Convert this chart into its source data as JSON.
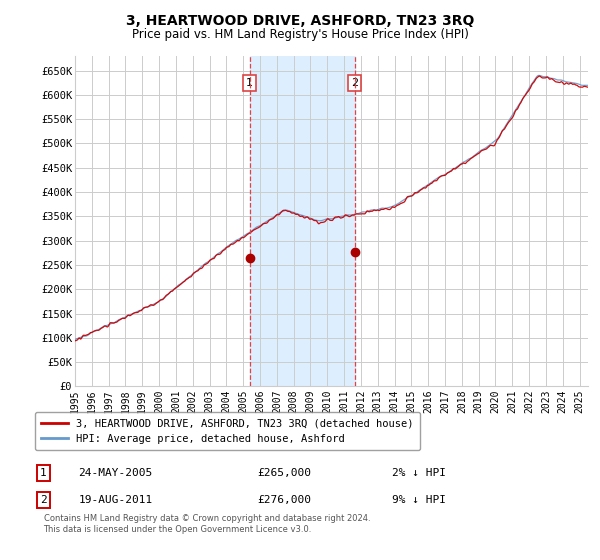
{
  "title": "3, HEARTWOOD DRIVE, ASHFORD, TN23 3RQ",
  "subtitle": "Price paid vs. HM Land Registry's House Price Index (HPI)",
  "yticks": [
    0,
    50000,
    100000,
    150000,
    200000,
    250000,
    300000,
    350000,
    400000,
    450000,
    500000,
    550000,
    600000,
    650000
  ],
  "ytick_labels": [
    "£0",
    "£50K",
    "£100K",
    "£150K",
    "£200K",
    "£250K",
    "£300K",
    "£350K",
    "£400K",
    "£450K",
    "£500K",
    "£550K",
    "£600K",
    "£650K"
  ],
  "ylim": [
    0,
    680000
  ],
  "xlim_start": 1995.0,
  "xlim_end": 2025.5,
  "xtick_years": [
    1995,
    1996,
    1997,
    1998,
    1999,
    2000,
    2001,
    2002,
    2003,
    2004,
    2005,
    2006,
    2007,
    2008,
    2009,
    2010,
    2011,
    2012,
    2013,
    2014,
    2015,
    2016,
    2017,
    2018,
    2019,
    2020,
    2021,
    2022,
    2023,
    2024,
    2025
  ],
  "sale1_x": 2005.39,
  "sale1_y": 265000,
  "sale2_x": 2011.63,
  "sale2_y": 276000,
  "marker_color": "#aa0000",
  "vline_color": "#dd4444",
  "highlight_color": "#ddeeff",
  "hpi_color": "#6699cc",
  "price_line_color": "#cc0000",
  "legend_line1": "3, HEARTWOOD DRIVE, ASHFORD, TN23 3RQ (detached house)",
  "legend_line2": "HPI: Average price, detached house, Ashford",
  "table_row1": [
    "1",
    "24-MAY-2005",
    "£265,000",
    "2% ↓ HPI"
  ],
  "table_row2": [
    "2",
    "19-AUG-2011",
    "£276,000",
    "9% ↓ HPI"
  ],
  "footnote": "Contains HM Land Registry data © Crown copyright and database right 2024.\nThis data is licensed under the Open Government Licence v3.0.",
  "background_color": "#ffffff",
  "grid_color": "#cccccc"
}
